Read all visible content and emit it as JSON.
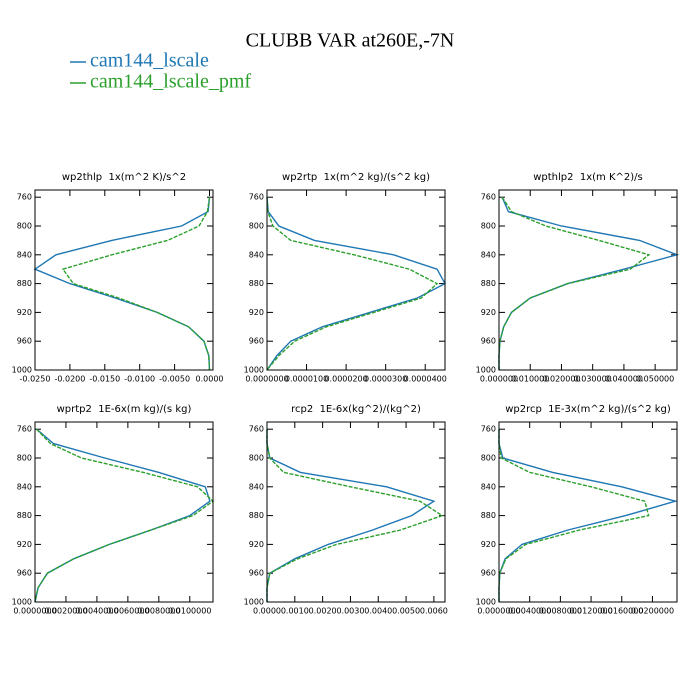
{
  "title": "CLUBB VAR at260E,-7N",
  "chart_data": [
    {
      "type": "line",
      "title": "wp2thlp  1x(m^2 K)/s^2",
      "y": [
        760,
        780,
        800,
        820,
        840,
        860,
        880,
        900,
        920,
        940,
        960,
        980,
        1000
      ],
      "xlim": [
        -0.025,
        0.0005
      ],
      "ylim": [
        750,
        1000
      ],
      "xticks": [
        {
          "value": -0.025,
          "label": "-0.0250"
        },
        {
          "value": -0.02,
          "label": "-0.0200"
        },
        {
          "value": -0.015,
          "label": "-0.0150"
        },
        {
          "value": -0.01,
          "label": "-0.0100"
        },
        {
          "value": -0.005,
          "label": "-0.0050"
        },
        {
          "value": 0,
          "label": "0.0000"
        }
      ],
      "yticks": [
        760,
        800,
        840,
        880,
        920,
        960,
        1000
      ],
      "series": [
        {
          "name": "cam144_lscale",
          "color": "#1f77b4",
          "linestyle": "solid",
          "values": [
            0,
            -0.0002,
            -0.004,
            -0.014,
            -0.022,
            -0.025,
            -0.02,
            -0.0135,
            -0.0075,
            -0.003,
            -0.0008,
            -0.0001,
            0
          ]
        },
        {
          "name": "cam144_lscale_pmf",
          "color": "#2ca02c",
          "linestyle": "dashed",
          "values": [
            0,
            -0.0003,
            -0.0015,
            -0.006,
            -0.014,
            -0.021,
            -0.0195,
            -0.013,
            -0.0075,
            -0.003,
            -0.0008,
            -0.0001,
            0
          ]
        }
      ]
    },
    {
      "type": "line",
      "title": "wp2rtp  1x(m^2 kg)/(s^2 kg)",
      "y": [
        760,
        780,
        800,
        820,
        840,
        860,
        880,
        900,
        920,
        940,
        960,
        980,
        1000
      ],
      "xlim": [
        0,
        4.5e-05
      ],
      "ylim": [
        750,
        1000
      ],
      "xticks": [
        {
          "value": 0,
          "label": "0.0000000"
        },
        {
          "value": 1e-05,
          "label": "0.0000100"
        },
        {
          "value": 2e-05,
          "label": "0.0000200"
        },
        {
          "value": 3e-05,
          "label": "0.0000300"
        },
        {
          "value": 4e-05,
          "label": "0.0000400"
        }
      ],
      "yticks": [
        760,
        800,
        840,
        880,
        920,
        960,
        1000
      ],
      "series": [
        {
          "name": "cam144_lscale",
          "color": "#1f77b4",
          "linestyle": "solid",
          "values": [
            0,
            3e-07,
            3e-06,
            1.2e-05,
            3.2e-05,
            4.3e-05,
            4.5e-05,
            3.8e-05,
            2.6e-05,
            1.4e-05,
            6e-06,
            2.5e-06,
            0
          ]
        },
        {
          "name": "cam144_lscale_pmf",
          "color": "#2ca02c",
          "linestyle": "dashed",
          "values": [
            0,
            2e-07,
            1.5e-06,
            6e-06,
            2.2e-05,
            3.6e-05,
            4.3e-05,
            3.9e-05,
            2.7e-05,
            1.5e-05,
            7e-06,
            3e-06,
            0
          ]
        }
      ]
    },
    {
      "type": "line",
      "title": "wpthlp2  1x(m K^2)/s",
      "y": [
        760,
        780,
        800,
        820,
        840,
        860,
        880,
        900,
        920,
        940,
        960,
        980,
        1000
      ],
      "xlim": [
        0,
        0.057
      ],
      "ylim": [
        750,
        1000
      ],
      "xticks": [
        {
          "value": 0,
          "label": "0.000000"
        },
        {
          "value": 0.01,
          "label": "0.010000"
        },
        {
          "value": 0.02,
          "label": "0.020000"
        },
        {
          "value": 0.03,
          "label": "0.030000"
        },
        {
          "value": 0.04,
          "label": "0.040000"
        },
        {
          "value": 0.05,
          "label": "0.050000"
        }
      ],
      "yticks": [
        760,
        800,
        840,
        880,
        920,
        960,
        1000
      ],
      "series": [
        {
          "name": "cam144_lscale",
          "color": "#1f77b4",
          "linestyle": "solid",
          "values": [
            0.001,
            0.003,
            0.02,
            0.045,
            0.057,
            0.04,
            0.022,
            0.01,
            0.004,
            0.0015,
            0.0003,
            0,
            0
          ]
        },
        {
          "name": "cam144_lscale_pmf",
          "color": "#2ca02c",
          "linestyle": "dashed",
          "values": [
            0.001,
            0.004,
            0.015,
            0.032,
            0.048,
            0.042,
            0.022,
            0.01,
            0.004,
            0.0015,
            0.0003,
            0,
            0
          ]
        }
      ]
    },
    {
      "type": "line",
      "title": "wprtp2  1E-6x(m kg)/(s kg)",
      "y": [
        760,
        780,
        800,
        820,
        840,
        860,
        880,
        900,
        920,
        940,
        960,
        980,
        1000
      ],
      "xlim": [
        0,
        0.0115
      ],
      "ylim": [
        750,
        1000
      ],
      "xticks": [
        {
          "value": 0,
          "label": "0.0000000"
        },
        {
          "value": 0.002,
          "label": "0.0020000"
        },
        {
          "value": 0.004,
          "label": "0.0040000"
        },
        {
          "value": 0.006,
          "label": "0.0060000"
        },
        {
          "value": 0.008,
          "label": "0.0080000"
        },
        {
          "value": 0.01,
          "label": "0.0100000"
        }
      ],
      "yticks": [
        760,
        800,
        840,
        880,
        920,
        960,
        1000
      ],
      "series": [
        {
          "name": "cam144_lscale",
          "color": "#1f77b4",
          "linestyle": "solid",
          "values": [
            0.0001,
            0.0012,
            0.0045,
            0.008,
            0.011,
            0.0113,
            0.01,
            0.0075,
            0.0048,
            0.0025,
            0.0008,
            0.0002,
            0
          ]
        },
        {
          "name": "cam144_lscale_pmf",
          "color": "#2ca02c",
          "linestyle": "dashed",
          "values": [
            0.0001,
            0.001,
            0.003,
            0.007,
            0.0105,
            0.0115,
            0.0102,
            0.0075,
            0.0048,
            0.0025,
            0.0008,
            0.0002,
            0
          ]
        }
      ]
    },
    {
      "type": "line",
      "title": "rcp2  1E-6x(kg^2)/(kg^2)",
      "y": [
        760,
        780,
        800,
        820,
        840,
        860,
        880,
        900,
        920,
        940,
        960,
        980,
        1000
      ],
      "xlim": [
        0,
        0.0064
      ],
      "ylim": [
        750,
        1000
      ],
      "xticks": [
        {
          "value": 0,
          "label": "0.0000"
        },
        {
          "value": 0.001,
          "label": "0.0010"
        },
        {
          "value": 0.002,
          "label": "0.0020"
        },
        {
          "value": 0.003,
          "label": "0.0030"
        },
        {
          "value": 0.004,
          "label": "0.0040"
        },
        {
          "value": 0.005,
          "label": "0.0050"
        },
        {
          "value": 0.006,
          "label": "0.0060"
        }
      ],
      "yticks": [
        760,
        800,
        840,
        880,
        920,
        960,
        1000
      ],
      "series": [
        {
          "name": "cam144_lscale",
          "color": "#1f77b4",
          "linestyle": "solid",
          "values": [
            0,
            0,
            0.0001,
            0.0012,
            0.0043,
            0.006,
            0.0052,
            0.0038,
            0.0022,
            0.001,
            0.0001,
            0,
            0
          ]
        },
        {
          "name": "cam144_lscale_pmf",
          "color": "#2ca02c",
          "linestyle": "dashed",
          "values": [
            0,
            0,
            0.0001,
            0.0006,
            0.003,
            0.0055,
            0.0063,
            0.0048,
            0.0025,
            0.0011,
            0.0001,
            0,
            0
          ]
        }
      ]
    },
    {
      "type": "line",
      "title": "wp2rcp  1E-3x(m^2 kg)/(s^2 kg)",
      "y": [
        760,
        780,
        800,
        820,
        840,
        860,
        880,
        900,
        920,
        940,
        960,
        980,
        1000
      ],
      "xlim": [
        0,
        0.0232
      ],
      "ylim": [
        750,
        1000
      ],
      "xticks": [
        {
          "value": 0,
          "label": "0.0000000"
        },
        {
          "value": 0.004,
          "label": "0.0040000"
        },
        {
          "value": 0.008,
          "label": "0.0080000"
        },
        {
          "value": 0.012,
          "label": "0.0120000"
        },
        {
          "value": 0.016,
          "label": "0.0160000"
        },
        {
          "value": 0.02,
          "label": "0.0200000"
        }
      ],
      "yticks": [
        760,
        800,
        840,
        880,
        920,
        960,
        1000
      ],
      "series": [
        {
          "name": "cam144_lscale",
          "color": "#1f77b4",
          "linestyle": "solid",
          "values": [
            0,
            0,
            0.0005,
            0.007,
            0.016,
            0.023,
            0.0165,
            0.009,
            0.003,
            0.0008,
            0.0001,
            0,
            0
          ]
        },
        {
          "name": "cam144_lscale_pmf",
          "color": "#2ca02c",
          "linestyle": "dashed",
          "values": [
            0,
            0,
            0.0003,
            0.004,
            0.012,
            0.019,
            0.0195,
            0.0105,
            0.0035,
            0.0009,
            0.0001,
            0,
            0
          ]
        }
      ]
    }
  ]
}
